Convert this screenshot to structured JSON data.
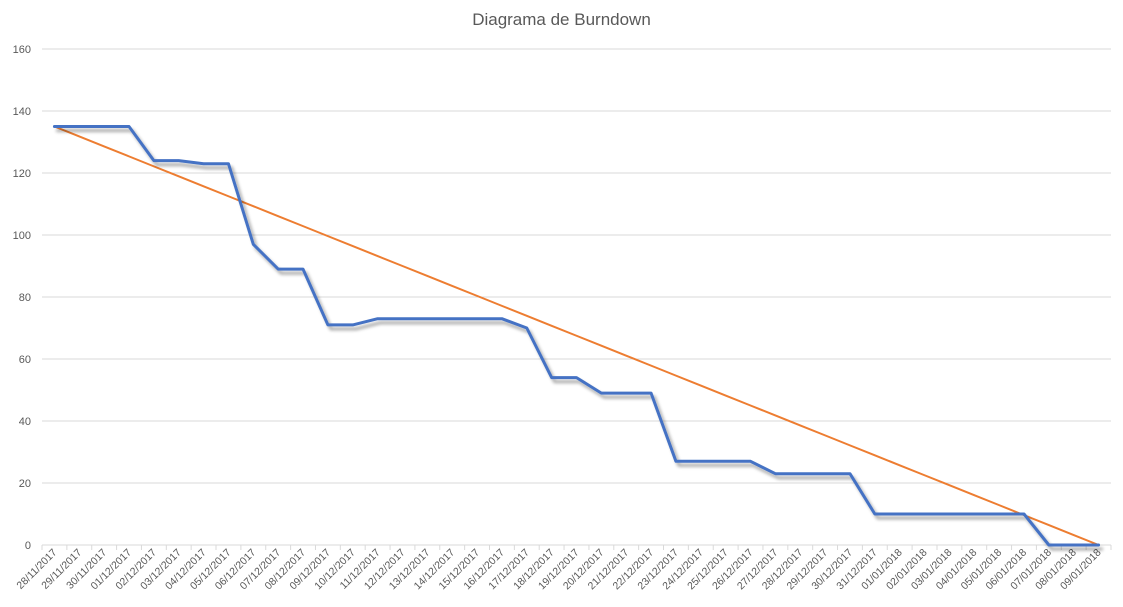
{
  "chart_data": {
    "type": "line",
    "title": "Diagrama de Burndown",
    "xlabel": "",
    "ylabel": "",
    "ylim": [
      0,
      160
    ],
    "yticks": [
      0,
      20,
      40,
      60,
      80,
      100,
      120,
      140,
      160
    ],
    "grid": true,
    "legend": "none",
    "categories": [
      "28/11/2017",
      "29/11/2017",
      "30/11/2017",
      "01/12/2017",
      "02/12/2017",
      "03/12/2017",
      "04/12/2017",
      "05/12/2017",
      "06/12/2017",
      "07/12/2017",
      "08/12/2017",
      "09/12/2017",
      "10/12/2017",
      "11/12/2017",
      "12/12/2017",
      "13/12/2017",
      "14/12/2017",
      "15/12/2017",
      "16/12/2017",
      "17/12/2017",
      "18/12/2017",
      "19/12/2017",
      "20/12/2017",
      "21/12/2017",
      "22/12/2017",
      "23/12/2017",
      "24/12/2017",
      "25/12/2017",
      "26/12/2017",
      "27/12/2017",
      "28/12/2017",
      "29/12/2017",
      "30/12/2017",
      "31/12/2017",
      "01/01/2018",
      "02/01/2018",
      "03/01/2018",
      "04/01/2018",
      "05/01/2018",
      "06/01/2018",
      "07/01/2018",
      "08/01/2018",
      "09/01/2018"
    ],
    "series": [
      {
        "color": "#4472c4",
        "values": [
          135,
          135,
          135,
          135,
          124,
          124,
          123,
          123,
          97,
          89,
          89,
          71,
          71,
          73,
          73,
          73,
          73,
          73,
          73,
          70,
          54,
          54,
          49,
          49,
          49,
          27,
          27,
          27,
          27,
          23,
          23,
          23,
          23,
          10,
          10,
          10,
          10,
          10,
          10,
          10,
          0,
          0,
          0
        ]
      },
      {
        "color": "#ed7d31",
        "values": [
          135,
          131.79,
          128.57,
          125.36,
          122.14,
          118.93,
          115.71,
          112.5,
          109.29,
          106.07,
          102.86,
          99.64,
          96.43,
          93.21,
          90,
          86.79,
          83.57,
          80.36,
          77.14,
          73.93,
          70.71,
          67.5,
          64.29,
          61.07,
          57.86,
          54.64,
          51.43,
          48.21,
          45,
          41.79,
          38.57,
          35.36,
          32.14,
          28.93,
          25.71,
          22.5,
          19.29,
          16.07,
          12.86,
          9.64,
          6.43,
          3.21,
          0
        ]
      }
    ]
  },
  "colors": {
    "grid": "#d9d9d9",
    "text": "#595959",
    "shadow": "#bfbfbf"
  }
}
